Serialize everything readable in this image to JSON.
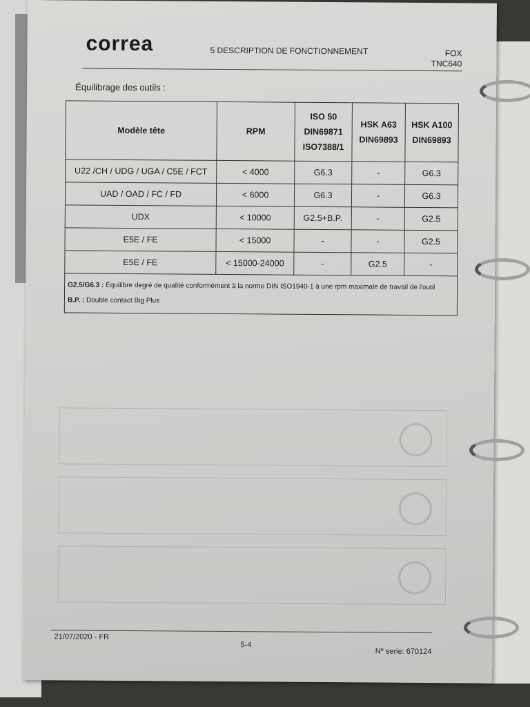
{
  "header": {
    "logo": "correa",
    "section": "5 DESCRIPTION DE FONCTIONNEMENT",
    "model": "FOX",
    "control": "TNC640"
  },
  "subtitle": "Équilibrage des outils :",
  "table": {
    "headers": [
      [
        "Modèle tête"
      ],
      [
        "RPM"
      ],
      [
        "ISO 50",
        "DIN69871",
        "ISO7388/1"
      ],
      [
        "HSK A63",
        "DIN69893"
      ],
      [
        "HSK A100",
        "DIN69893"
      ]
    ],
    "rows": [
      [
        "U22 /CH / UDG / UGA / C5E / FCT",
        "< 4000",
        "G6.3",
        "-",
        "G6.3"
      ],
      [
        "UAD / OAD / FC / FD",
        "< 6000",
        "G6.3",
        "-",
        "G6.3"
      ],
      [
        "UDX",
        "< 10000",
        "G2.5+B.P.",
        "-",
        "G2.5"
      ],
      [
        "E5E / FE",
        "< 15000",
        "-",
        "-",
        "G2.5"
      ],
      [
        "E5E / FE",
        "< 15000-24000",
        "-",
        "G2.5",
        "-"
      ]
    ],
    "notes": [
      {
        "key": "G2.5/G6.3 :",
        "text": " Équilibre degré de qualité conformément à la norme DIN ISO1940-1 à une rpm maximale de travail de l'outil"
      },
      {
        "key": "B.P. :",
        "text": " Double contact Big Plus"
      }
    ]
  },
  "footer": {
    "date": "21/07/2020 - FR",
    "page": "5-4",
    "serial": "Nº serie: 670124"
  }
}
